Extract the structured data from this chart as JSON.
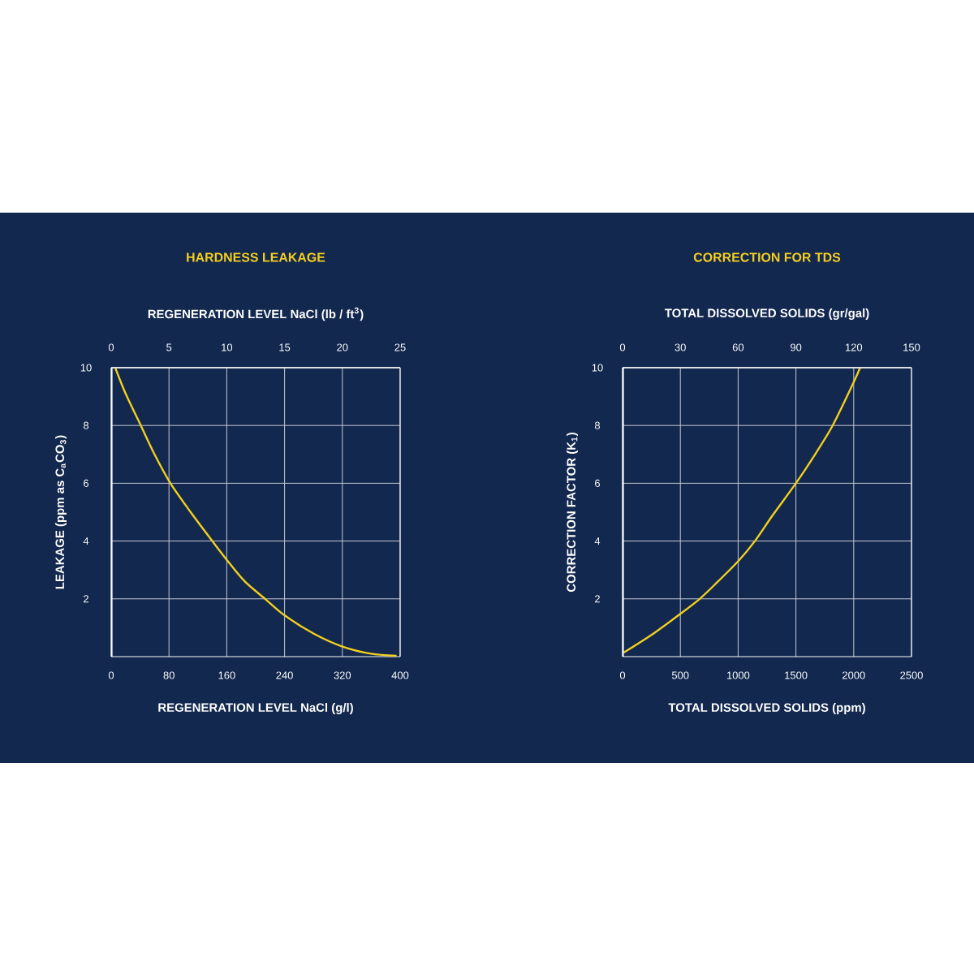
{
  "chart_data": [
    {
      "type": "line",
      "title": "HARDNESS LEAKAGE",
      "xlabel": "REGENERATION LEVEL NaCl (g/l)",
      "x2label": "REGENERATION LEVEL NaCl (lb / ft$^{3}$)",
      "ylabel": "LEAKAGE (ppm as C$_{a}$CO$_{3}$)",
      "xlim": [
        0,
        400
      ],
      "xticks": [
        0,
        80,
        160,
        240,
        320,
        400
      ],
      "x2lim": [
        0,
        25
      ],
      "x2ticks": [
        0,
        5,
        10,
        15,
        20,
        25
      ],
      "ylim": [
        0,
        10
      ],
      "yticks": [
        2,
        4,
        6,
        8,
        10
      ],
      "grid": true,
      "series": [
        {
          "color": "#f2d01e",
          "x": [
            5.6,
            20,
            41,
            60,
            82,
            110,
            140,
            160,
            185,
            213,
            240,
            280,
            320,
            360,
            395
          ],
          "values": [
            10,
            9.1,
            8,
            7,
            6,
            5,
            4,
            3.35,
            2.6,
            2,
            1.43,
            0.8,
            0.35,
            0.1,
            0.03
          ]
        }
      ]
    },
    {
      "type": "line",
      "title": "CORRECTION FOR TDS",
      "xlabel": "TOTAL DISSOLVED SOLIDS (ppm)",
      "x2label": "TOTAL DISSOLVED SOLIDS (gr/gal)",
      "ylabel": "CORRECTION FACTOR (K$_{1}$)",
      "xlim": [
        0,
        2500
      ],
      "xticks": [
        0,
        500,
        1000,
        1500,
        2000,
        2500
      ],
      "x2lim": [
        0,
        150
      ],
      "x2ticks": [
        0,
        30,
        60,
        90,
        120,
        150
      ],
      "ylim": [
        0,
        10
      ],
      "yticks": [
        2,
        4,
        6,
        8,
        10
      ],
      "grid": true,
      "series": [
        {
          "color": "#f2d01e",
          "x": [
            10,
            250,
            500,
            668,
            800,
            1000,
            1145,
            1300,
            1500,
            1650,
            1818,
            2000,
            2055
          ],
          "values": [
            0.14,
            0.75,
            1.48,
            2,
            2.5,
            3.3,
            4,
            4.9,
            6,
            6.9,
            8,
            9.5,
            10
          ]
        }
      ]
    }
  ]
}
